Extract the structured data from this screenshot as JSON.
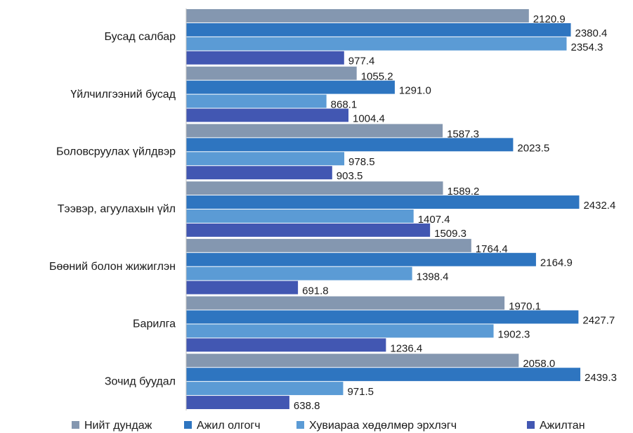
{
  "chart_data": {
    "type": "hbar",
    "categories": [
      "Бусад салбар",
      "Үйлчилгээний бусад",
      "Боловсруулах үйлдвэр",
      "Тээвэр, агуулахын үйл",
      "Бөөний болон жижиглэн",
      "Барилга",
      "Зочид буудал"
    ],
    "series": [
      {
        "name": "Нийт дундаж",
        "color": "#8497b0",
        "values": [
          2120.9,
          1055.2,
          1587.3,
          1589.2,
          1764.4,
          1970.1,
          2058.0
        ],
        "value_labels": [
          "2120.9",
          "1055.2",
          "1587.3",
          "1589.2",
          "1764.4",
          "1970.1",
          "2058.0"
        ]
      },
      {
        "name": "Ажил олгогч",
        "color": "#2e75c0",
        "values": [
          2380.4,
          1291.0,
          2023.5,
          2432.4,
          2164.9,
          2427.7,
          2439.3
        ],
        "value_labels": [
          "2380.4",
          "1291.0",
          "2023.5",
          "2432.4",
          "2164.9",
          "2427.7",
          "2439.3"
        ]
      },
      {
        "name": "Хувиараа хөдөлмөр эрхлэгч",
        "color": "#5b9bd5",
        "values": [
          2354.3,
          868.1,
          978.5,
          1407.4,
          1398.4,
          1902.3,
          971.5
        ],
        "value_labels": [
          "2354.3",
          "868.1",
          "978.5",
          "1407.4",
          "1398.4",
          "1902.3",
          "971.5"
        ]
      },
      {
        "name": "Ажилтан",
        "color": "#4257b2",
        "values": [
          977.4,
          1004.4,
          903.5,
          1509.3,
          691.8,
          1236.4,
          638.8
        ],
        "value_labels": [
          "977.4",
          "1004.4",
          "903.5",
          "1509.3",
          "691.8",
          "1236.4",
          "638.8"
        ]
      }
    ],
    "xlim": [
      0,
      2500
    ],
    "legend": "bottom"
  }
}
